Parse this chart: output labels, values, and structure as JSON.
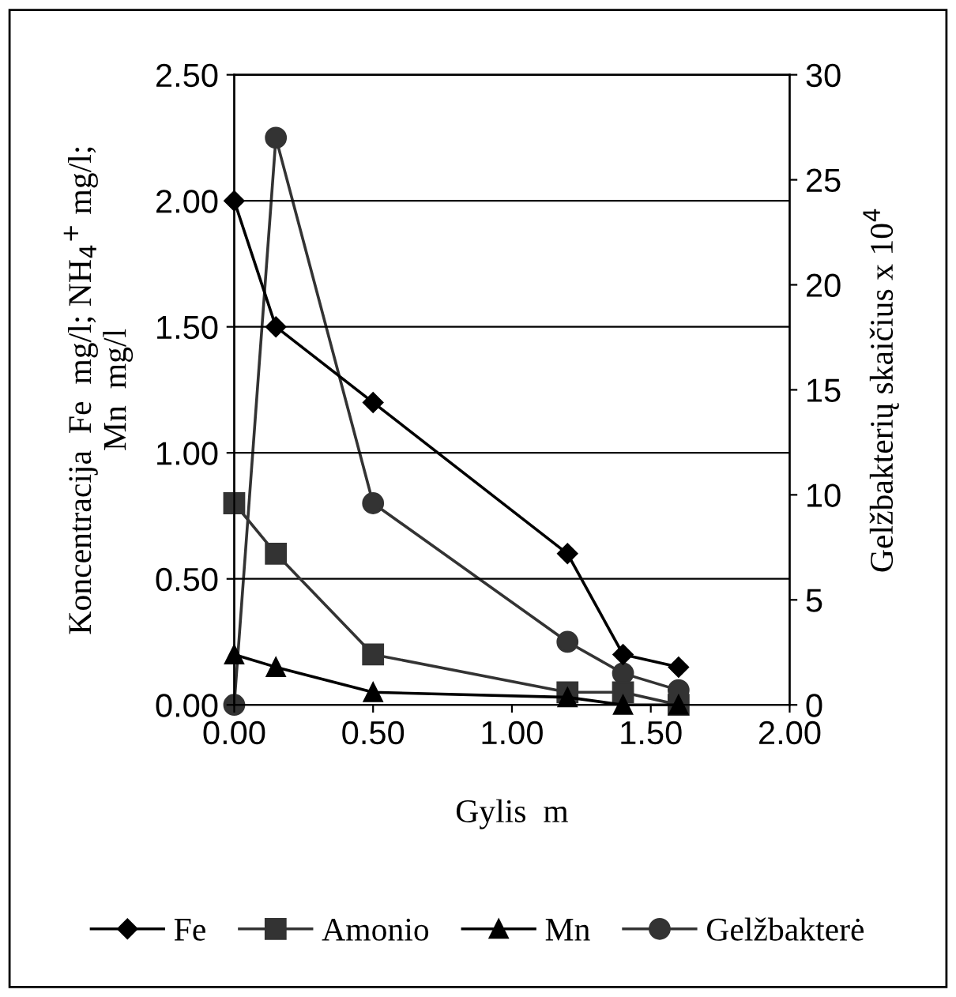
{
  "chart_data": {
    "type": "line",
    "xlabel": "Gylis  m",
    "ylabel": "Koncentracija  Fe  mg/l; NH$_{4}$$^{+}$ mg/l;\nMn  mg/l",
    "y2label": "Gelžbakterių skaičius x 10$^{4}$",
    "x": [
      0,
      0.15,
      0.5,
      1.2,
      1.4,
      1.6
    ],
    "xlim": [
      0,
      2
    ],
    "xticks": [
      {
        "value": 0,
        "label": "0.00"
      },
      {
        "value": 0.5,
        "label": "0.50"
      },
      {
        "value": 1,
        "label": "1.00"
      },
      {
        "value": 1.5,
        "label": "1.50"
      },
      {
        "value": 2,
        "label": "2.00"
      }
    ],
    "ylim": [
      0,
      2.5
    ],
    "yticks": [
      {
        "value": 0,
        "label": "0.00"
      },
      {
        "value": 0.5,
        "label": "0.50"
      },
      {
        "value": 1,
        "label": "1.00"
      },
      {
        "value": 1.5,
        "label": "1.50"
      },
      {
        "value": 2,
        "label": "2.00"
      },
      {
        "value": 2.5,
        "label": "2.50"
      }
    ],
    "y2lim": [
      0,
      30
    ],
    "y2ticks": [
      0,
      5,
      10,
      15,
      20,
      25,
      30
    ],
    "grid": "y",
    "legend": "bottom",
    "line_style": "solid",
    "series": [
      {
        "name": "Fe",
        "color": "#000000",
        "marker": "diamond",
        "values": [
          2.0,
          1.5,
          1.2,
          0.6,
          0.2,
          0.15
        ]
      },
      {
        "name": "Amonio",
        "color": "#333333",
        "marker": "square",
        "values": [
          0.8,
          0.6,
          0.2,
          0.05,
          0.05,
          0.0
        ]
      },
      {
        "name": "Mn",
        "color": "#000000",
        "marker": "triangle",
        "values": [
          0.2,
          0.15,
          0.05,
          0.03,
          0.0,
          0.0
        ]
      },
      {
        "name": "Gelžbakterė",
        "color": "#333333",
        "marker": "circle",
        "axis": "y2",
        "values": [
          0,
          27,
          9.6,
          3.0,
          1.5,
          0.7
        ]
      }
    ]
  }
}
